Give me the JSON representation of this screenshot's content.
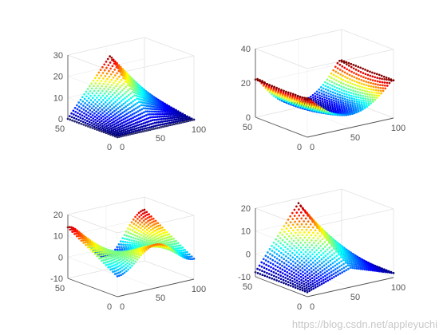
{
  "chart_data": [
    {
      "type": "surface",
      "title": "",
      "colormap": "jet",
      "mark": "dot-lattice",
      "surface": "tent",
      "x_range": [
        0,
        100
      ],
      "y_range": [
        0,
        50
      ],
      "zlim": [
        0,
        30
      ],
      "x_ticks": [
        "0",
        "50",
        "100"
      ],
      "y_ticks": [
        "0",
        "50"
      ],
      "z_ticks": [
        "0",
        "10",
        "20",
        "30"
      ],
      "z_peak": 25,
      "z_min": 0
    },
    {
      "type": "surface",
      "title": "",
      "colormap": "jet",
      "mark": "dot-lattice",
      "surface": "bowl",
      "x_range": [
        0,
        100
      ],
      "y_range": [
        0,
        50
      ],
      "zlim": [
        0,
        40
      ],
      "x_ticks": [
        "0",
        "50",
        "100"
      ],
      "y_ticks": [
        "0",
        "50"
      ],
      "z_ticks": [
        "0",
        "20",
        "40"
      ],
      "z_peak": 22,
      "z_min": 3
    },
    {
      "type": "surface",
      "title": "",
      "colormap": "jet",
      "mark": "dot-lattice",
      "surface": "saddle",
      "x_range": [
        0,
        100
      ],
      "y_range": [
        0,
        50
      ],
      "zlim": [
        -10,
        20
      ],
      "x_ticks": [
        "0",
        "50",
        "100"
      ],
      "y_ticks": [
        "0",
        "50"
      ],
      "z_ticks": [
        "-10",
        "0",
        "10",
        "20"
      ],
      "z_peak": 15,
      "z_min": -5
    },
    {
      "type": "surface",
      "title": "",
      "colormap": "jet",
      "mark": "dot-lattice",
      "surface": "ridge",
      "x_range": [
        0,
        100
      ],
      "y_range": [
        0,
        50
      ],
      "zlim": [
        -10,
        20
      ],
      "x_ticks": [
        "0",
        "50",
        "100"
      ],
      "y_ticks": [
        "0",
        "50"
      ],
      "z_ticks": [
        "-10",
        "0",
        "10",
        "20"
      ],
      "z_peak": 18,
      "z_min": -8
    }
  ],
  "watermark": "https://blog.csdn.net/appleyuchi"
}
